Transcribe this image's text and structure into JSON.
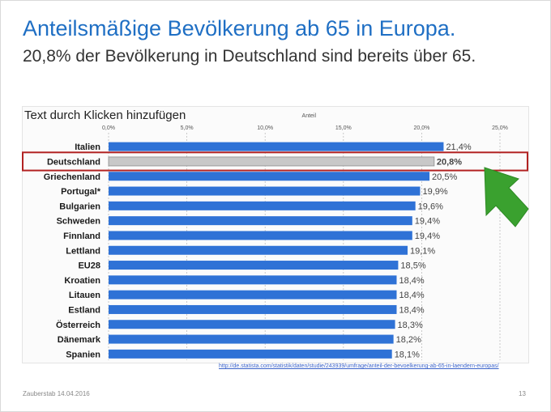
{
  "slide": {
    "title": "Anteilsmäßige Bevölkerung ab 65 in Europa.",
    "subtitle": "20,8% der Bevölkerung in Deutschland sind bereits über 65.",
    "placeholder": "Text durch Klicken hinzufügen",
    "source_link": "http://de.statista.com/statistik/daten/studie/243939/umfrage/anteil-der-bevoelkerung-ab-65-in-laendern-europas/",
    "footer_left": "Zauberstab 14.04.2016",
    "page_number": "13",
    "highlight_color": "#b22222",
    "arrow_color": "#3aa12f",
    "arrow_icon": "green-arrow-icon"
  },
  "chart_data": {
    "type": "bar",
    "orientation": "horizontal",
    "title": "",
    "xlabel": "Anteil",
    "ylabel": "",
    "xlim": [
      0,
      25
    ],
    "xticks": [
      0,
      5,
      10,
      15,
      20,
      25
    ],
    "xtick_labels": [
      "0,0%",
      "5,0%",
      "10,0%",
      "15,0%",
      "20,0%",
      "25,0%"
    ],
    "grid": true,
    "categories": [
      "Italien",
      "Deutschland",
      "Griechenland",
      "Portugal*",
      "Bulgarien",
      "Schweden",
      "Finnland",
      "Lettland",
      "EU28",
      "Kroatien",
      "Litauen",
      "Estland",
      "Österreich",
      "Dänemark",
      "Spanien"
    ],
    "values": [
      21.4,
      20.8,
      20.5,
      19.9,
      19.6,
      19.4,
      19.4,
      19.1,
      18.5,
      18.4,
      18.4,
      18.4,
      18.3,
      18.2,
      18.1
    ],
    "value_labels": [
      "21,4%",
      "20,8%",
      "20,5%",
      "19,9%",
      "19,6%",
      "19,4%",
      "19,4%",
      "19,1%",
      "18,5%",
      "18,4%",
      "18,4%",
      "18,4%",
      "18,3%",
      "18,2%",
      "18,1%"
    ],
    "bar_color": "#2f72d6",
    "highlight_category": "Deutschland",
    "highlight_bar_color": "#c8c8c8",
    "highlight_label_color": "#b22222"
  }
}
